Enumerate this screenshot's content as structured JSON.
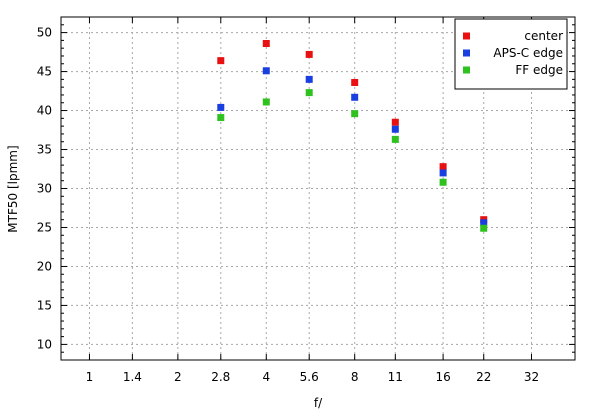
{
  "chart_data": {
    "type": "scatter",
    "title": "",
    "xlabel": "f/",
    "ylabel": "MTF50 [lpmm]",
    "x_scale": "log2",
    "x_ticks": [
      "1",
      "1.4",
      "2",
      "2.8",
      "4",
      "5.6",
      "8",
      "11",
      "16",
      "22",
      "32"
    ],
    "x_tick_values": [
      1,
      1.4,
      2,
      2.8,
      4,
      5.6,
      8,
      11,
      16,
      22,
      32
    ],
    "xlim": [
      0.8,
      45
    ],
    "ylim": [
      8,
      52
    ],
    "y_ticks": [
      10,
      15,
      20,
      25,
      30,
      35,
      40,
      45,
      50
    ],
    "grid": true,
    "legend_position": "top-right",
    "x": [
      2.8,
      4,
      5.6,
      8,
      11,
      16,
      22
    ],
    "series": [
      {
        "name": "center",
        "color": "#e81010",
        "values": [
          46.4,
          48.6,
          47.2,
          43.6,
          38.5,
          32.8,
          26.0
        ]
      },
      {
        "name": "APS-C edge",
        "color": "#1a3fe0",
        "values": [
          40.4,
          45.1,
          44.0,
          41.7,
          37.6,
          32.0,
          25.6
        ]
      },
      {
        "name": "FF edge",
        "color": "#2fc21f",
        "values": [
          39.1,
          41.1,
          42.3,
          39.6,
          36.3,
          30.8,
          24.9
        ]
      }
    ]
  }
}
